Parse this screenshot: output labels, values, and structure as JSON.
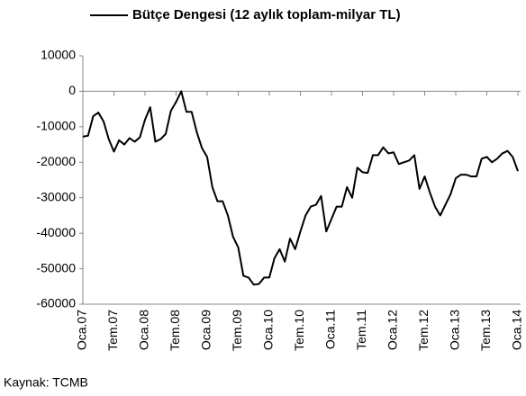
{
  "chart_data": {
    "type": "line",
    "source": "Kaynak: TCMB",
    "categories": [
      "Oca.07",
      null,
      null,
      null,
      null,
      null,
      "Tem.07",
      null,
      null,
      null,
      null,
      null,
      "Oca.08",
      null,
      null,
      null,
      null,
      null,
      "Tem.08",
      null,
      null,
      null,
      null,
      null,
      "Oca.09",
      null,
      null,
      null,
      null,
      null,
      "Tem.09",
      null,
      null,
      null,
      null,
      null,
      "Oca.10",
      null,
      null,
      null,
      null,
      null,
      "Tem.10",
      null,
      null,
      null,
      null,
      null,
      "Oca.11",
      null,
      null,
      null,
      null,
      null,
      "Tem.11",
      null,
      null,
      null,
      null,
      null,
      "Oca.12",
      null,
      null,
      null,
      null,
      null,
      "Tem.12",
      null,
      null,
      null,
      null,
      null,
      "Oca.13",
      null,
      null,
      null,
      null,
      null,
      "Tem.13",
      null,
      null,
      null,
      null,
      null,
      "Oca.14"
    ],
    "series": [
      {
        "name": "Bütçe Dengesi (12 aylık toplam-milyar TL)",
        "color": "#000000",
        "values": [
          -12800,
          -12500,
          -7000,
          -6000,
          -8500,
          -13500,
          -17000,
          -13800,
          -15000,
          -13200,
          -14200,
          -13000,
          -8000,
          -4500,
          -14200,
          -13500,
          -12000,
          -5500,
          -3000,
          0,
          -5800,
          -5800,
          -11500,
          -16000,
          -18500,
          -27000,
          -31000,
          -31000,
          -35000,
          -41000,
          -44000,
          -52000,
          -52500,
          -54500,
          -54300,
          -52500,
          -52500,
          -47000,
          -44500,
          -48000,
          -41500,
          -44500,
          -39500,
          -35000,
          -32500,
          -32000,
          -29500,
          -39500,
          -36000,
          -32500,
          -32500,
          -27000,
          -30000,
          -21500,
          -22800,
          -23000,
          -18000,
          -18000,
          -15800,
          -17500,
          -17200,
          -20500,
          -20000,
          -19500,
          -18000,
          -27500,
          -24000,
          -28500,
          -32500,
          -35000,
          -32000,
          -29000,
          -24500,
          -23500,
          -23500,
          -24000,
          -24000,
          -19000,
          -18500,
          -20000,
          -19000,
          -17500,
          -16800,
          -18500,
          -22500
        ]
      }
    ],
    "ylim": [
      -60000,
      10000
    ],
    "yticks": [
      10000,
      0,
      -10000,
      -20000,
      -30000,
      -40000,
      -50000,
      -60000
    ],
    "grid": false
  }
}
